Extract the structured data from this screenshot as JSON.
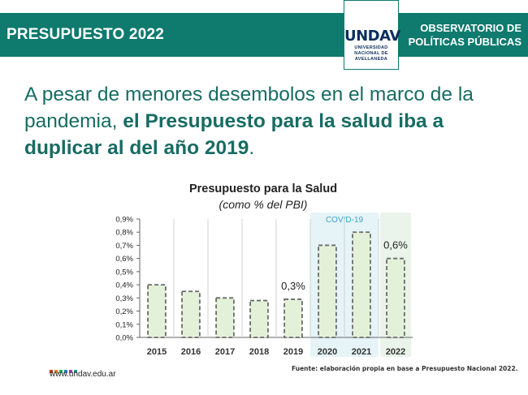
{
  "header": {
    "title": "PRESUPUESTO 2022",
    "right_line1": "OBSERVATORIO DE",
    "right_line2": "POLÍTICAS PÚBLICAS",
    "logo_text": "UNDAV",
    "logo_sub1": "UNIVERSIDAD",
    "logo_sub2": "NACIONAL DE",
    "logo_sub3": "AVELLANEDA"
  },
  "headline": {
    "part1": "A pesar de menores desembolos en el marco de la pandemia, ",
    "part2": "el Presupuesto para la salud iba a duplicar al del año 2019",
    "part3": "."
  },
  "chart_data": {
    "type": "bar",
    "title": "Presupuesto para la Salud",
    "subtitle": "(como % del PBI)",
    "categories": [
      "2015",
      "2016",
      "2017",
      "2018",
      "2019",
      "2020",
      "2021",
      "2022"
    ],
    "values": [
      0.4,
      0.35,
      0.3,
      0.28,
      0.29,
      0.7,
      0.8,
      0.6
    ],
    "data_labels": {
      "2019": "0,3%",
      "2022": "0,6%"
    },
    "y_ticks": [
      "0,0%",
      "0,1%",
      "0,2%",
      "0,3%",
      "0,4%",
      "0,5%",
      "0,6%",
      "0,7%",
      "0,8%",
      "0,9%"
    ],
    "ylim": [
      0,
      0.9
    ],
    "highlight_label": "COVID-19",
    "highlight_categories": [
      "2020",
      "2021"
    ],
    "grid": "vertical separators",
    "colors": {
      "bar_fill": "#e3f1d8",
      "bar_stroke": "#6b6b6b",
      "covid_band": "#e6f4f8",
      "covid_text": "#3aa5c7",
      "year_2022_band": "#eaf4ea"
    }
  },
  "footer": {
    "url": "www.undav.edu.ar",
    "source": "Fuente: elaboración propia en base a Presupuesto Nacional 2022."
  },
  "brand_colors": [
    "#c0392b",
    "#e67e22",
    "#27ae60",
    "#2980b9",
    "#8e44ad",
    "#16a085"
  ]
}
